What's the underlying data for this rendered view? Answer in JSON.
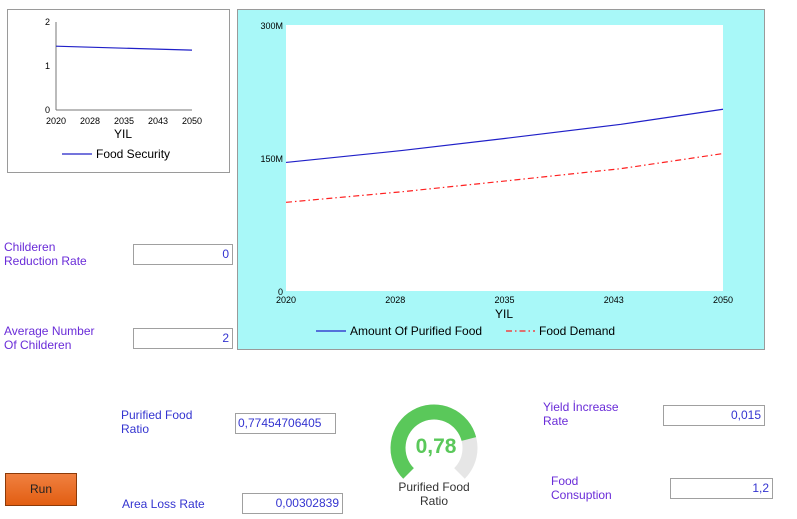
{
  "small_chart": {
    "y_ticks": [
      "0",
      "1",
      "2"
    ],
    "x_ticks": [
      "2020",
      "2028",
      "2035",
      "2043",
      "2050"
    ],
    "xlabel": "YIL",
    "legend": "Food Security",
    "series_color": "#2020c8"
  },
  "big_chart": {
    "y_ticks": [
      "0",
      "150M",
      "300M"
    ],
    "x_ticks": [
      "2020",
      "2028",
      "2035",
      "2043",
      "2050"
    ],
    "xlabel": "YIL",
    "legend_1": "Amount Of Purified Food",
    "legend_2": "Food Demand",
    "color_1": "#2020c8",
    "color_2": "#ff2020"
  },
  "chart_data": [
    {
      "type": "line",
      "x": [
        2020,
        2050
      ],
      "series": [
        {
          "name": "Food Security",
          "values": [
            1.45,
            1.36
          ]
        }
      ],
      "xlabel": "YIL",
      "ylim": [
        0,
        2
      ],
      "legend": "bottom"
    },
    {
      "type": "line",
      "x": [
        2020,
        2028,
        2035,
        2043,
        2050
      ],
      "series": [
        {
          "name": "Amount Of Purified Food",
          "values": [
            145000000,
            158500000,
            172000000,
            188000000,
            205000000
          ]
        },
        {
          "name": "Food Demand",
          "values": [
            100000000,
            112000000,
            124000000,
            138000000,
            155000000
          ]
        }
      ],
      "xlabel": "YIL",
      "ylim": [
        0,
        300000000
      ],
      "legend": "bottom"
    }
  ],
  "inputs": {
    "childeren_reduction_rate": {
      "label_1": "Childeren",
      "label_2": "Reduction Rate",
      "value": "0"
    },
    "average_number_of_childeren": {
      "label_1": "Average Number",
      "label_2": "Of Childeren",
      "value": "2"
    },
    "purified_food_ratio": {
      "label_1": "Purified Food",
      "label_2": "Ratio",
      "value": "0,77454706405"
    },
    "area_loss_rate": {
      "label": "Area Loss Rate",
      "value": "0,00302839"
    },
    "yield_increase_rate": {
      "label_1": "Yield İncrease",
      "label_2": "Rate",
      "value": "0,015"
    },
    "food_consuption": {
      "label_1": "Food",
      "label_2": "Consuption",
      "value": "1,2"
    }
  },
  "gauge": {
    "value_text": "0,78",
    "fraction": 0.78,
    "caption_1": "Purified Food",
    "caption_2": "Ratio",
    "fill_color": "#5ac85a",
    "track_color": "#e6e6e6"
  },
  "run_button": {
    "label": "Run"
  }
}
